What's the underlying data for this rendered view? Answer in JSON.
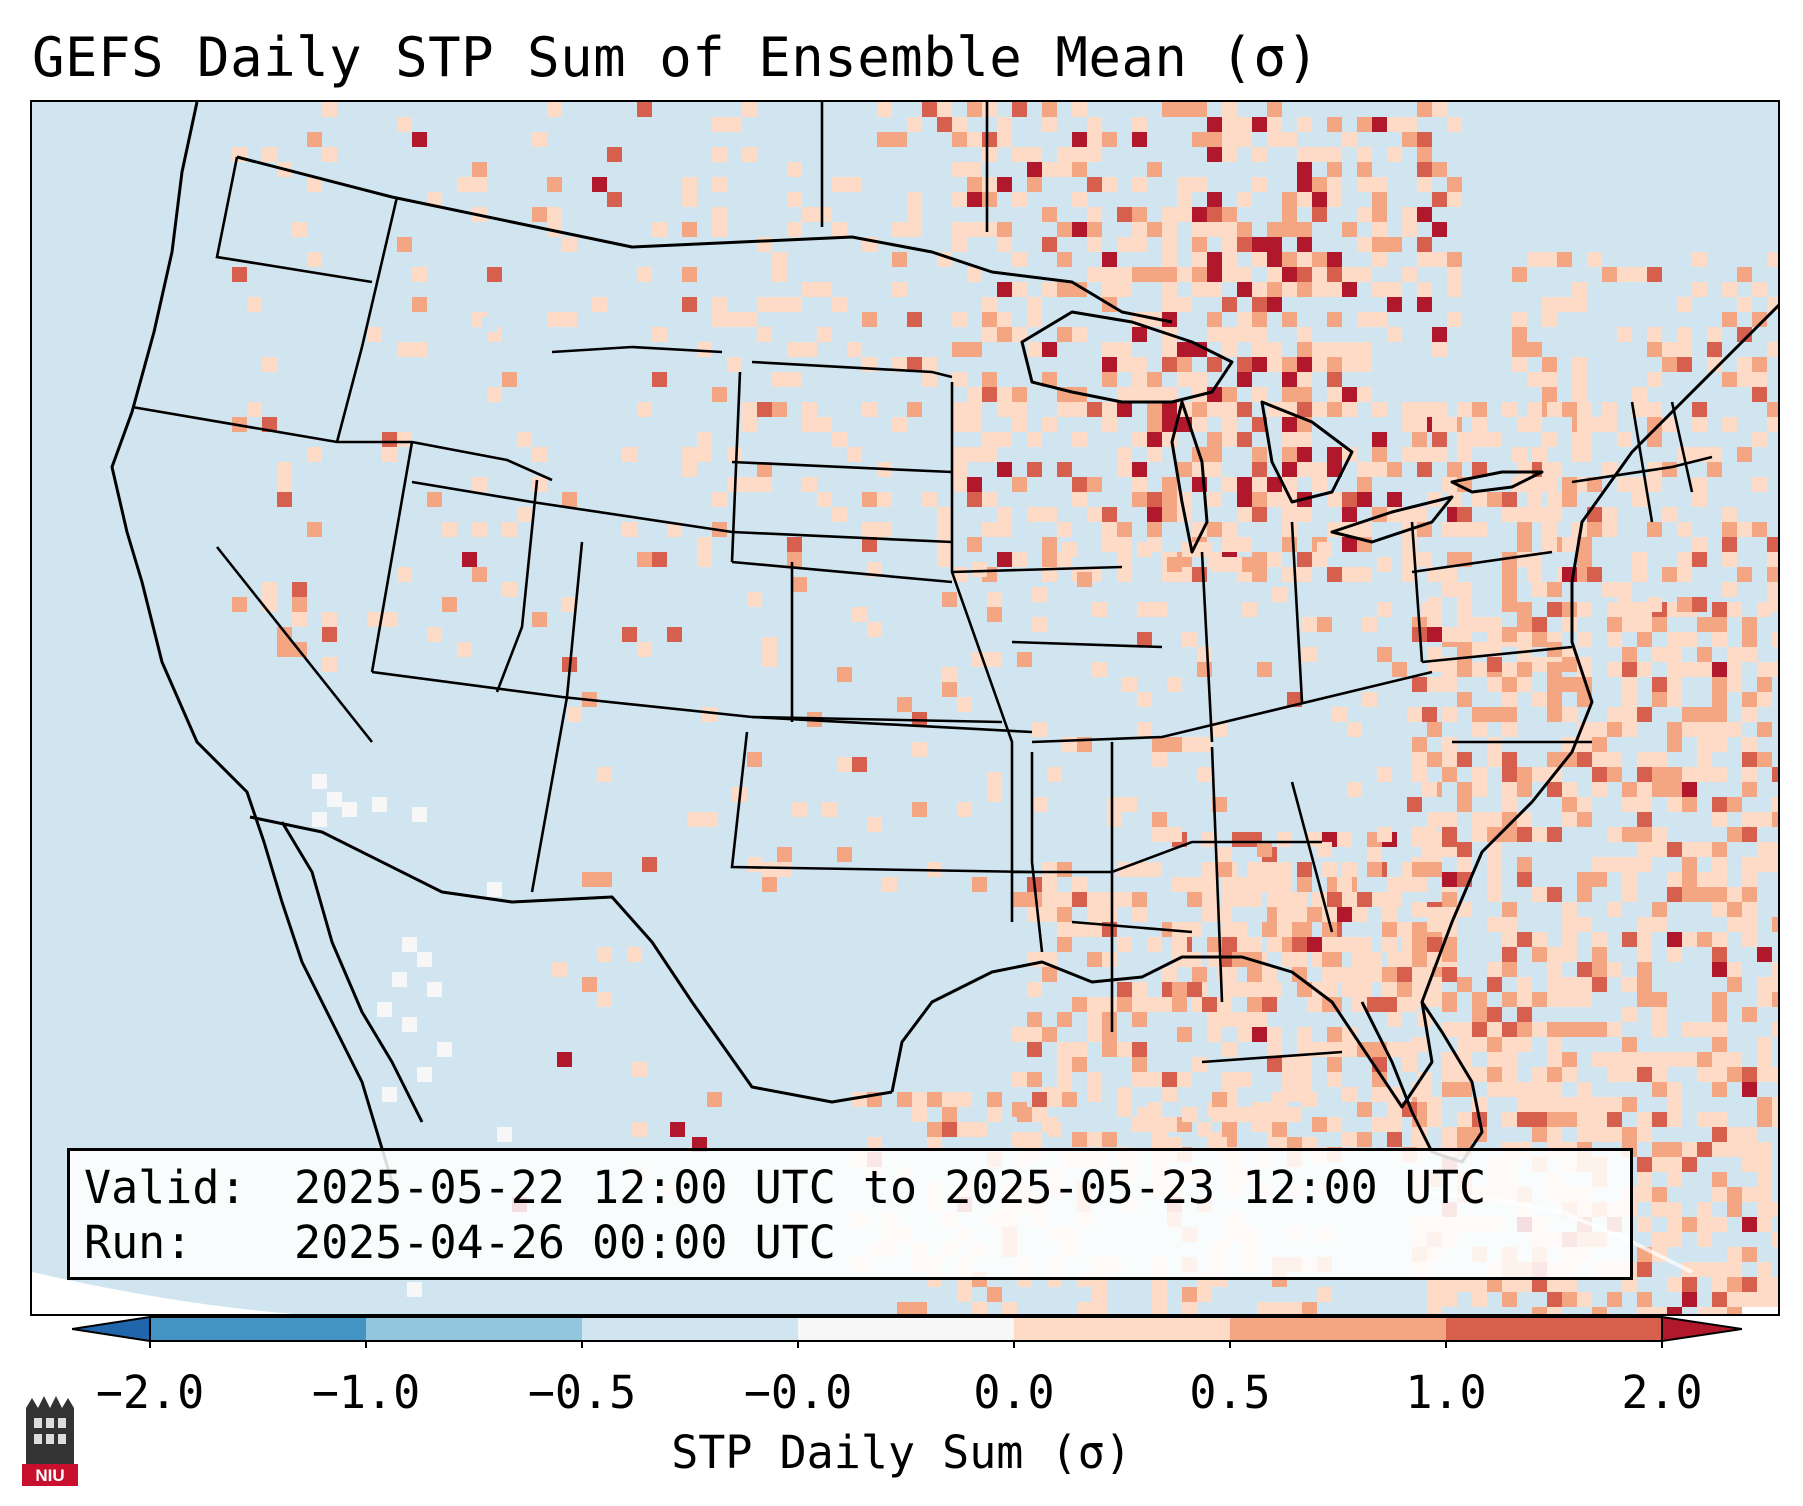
{
  "title": "GEFS Daily STP Sum of Ensemble Mean (σ)",
  "valid": {
    "label": "Valid:",
    "value": "2025-05-22 12:00 UTC to 2025-05-23 12:00 UTC"
  },
  "run": {
    "label": "Run:",
    "value": "2025-04-26 00:00 UTC"
  },
  "colorbar": {
    "label": "STP Daily Sum (σ)",
    "ticks": [
      "−2.0",
      "−1.0",
      "−0.5",
      "−0.0",
      "0.0",
      "0.5",
      "1.0",
      "2.0"
    ],
    "colors": [
      "#2166ac",
      "#4393c3",
      "#92c5de",
      "#d1e5f0",
      "#f7f7f7",
      "#fddbc7",
      "#f4a582",
      "#d6604d",
      "#b2182b"
    ]
  },
  "map": {
    "ocean_color": "#d1e5f0",
    "land_color": "#d1e5f0",
    "border_color": "#000000"
  },
  "logo": {
    "text": "NIU",
    "icon": "niu-castle-icon"
  }
}
